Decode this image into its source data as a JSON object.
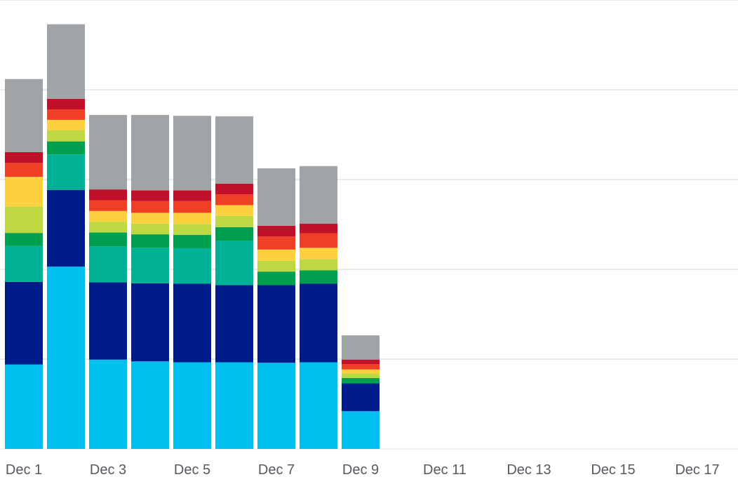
{
  "chart_data": {
    "type": "bar",
    "stacked": true,
    "title": "",
    "xlabel": "",
    "ylabel": "",
    "ylim": [
      0,
      100
    ],
    "grid": true,
    "legend": "none",
    "categories": [
      "Dec 1",
      "Dec 2",
      "Dec 3",
      "Dec 4",
      "Dec 5",
      "Dec 6",
      "Dec 7",
      "Dec 8",
      "Dec 9",
      "Dec 10",
      "Dec 11",
      "Dec 12",
      "Dec 13",
      "Dec 14",
      "Dec 15",
      "Dec 16",
      "Dec 17"
    ],
    "tick_labels": [
      "Dec 1",
      "Dec 3",
      "Dec 5",
      "Dec 7",
      "Dec 9",
      "Dec 11",
      "Dec 13",
      "Dec 15",
      "Dec 17"
    ],
    "series": [
      {
        "color": "#00bfee",
        "values": [
          18.8,
          40.6,
          19.9,
          19.5,
          19.3,
          19.3,
          19.2,
          19.3,
          8.4,
          0,
          0,
          0,
          0,
          0,
          0,
          0,
          0
        ]
      },
      {
        "color": "#001c8b",
        "values": [
          18.4,
          17.1,
          17.2,
          17.4,
          17.5,
          17.2,
          17.3,
          17.5,
          6.2,
          0,
          0,
          0,
          0,
          0,
          0,
          0,
          0
        ]
      },
      {
        "color": "#00b195",
        "values": [
          8.0,
          7.9,
          8.0,
          7.9,
          7.9,
          9.9,
          0.0,
          0.0,
          0.0,
          0,
          0,
          0,
          0,
          0,
          0,
          0,
          0
        ]
      },
      {
        "color": "#009e4f",
        "values": [
          2.9,
          2.9,
          3.1,
          3.0,
          3.0,
          3.0,
          3.0,
          3.0,
          1.2,
          0,
          0,
          0,
          0,
          0,
          0,
          0,
          0
        ]
      },
      {
        "color": "#bdd843",
        "values": [
          5.9,
          2.5,
          2.4,
          2.4,
          2.4,
          2.5,
          2.4,
          2.5,
          1.0,
          0,
          0,
          0,
          0,
          0,
          0,
          0,
          0
        ]
      },
      {
        "color": "#fdd13d",
        "values": [
          6.6,
          2.3,
          2.4,
          2.4,
          2.5,
          2.4,
          2.5,
          2.5,
          0.9,
          0,
          0,
          0,
          0,
          0,
          0,
          0,
          0
        ]
      },
      {
        "color": "#ef3f24",
        "values": [
          3.1,
          2.3,
          2.4,
          2.6,
          2.6,
          2.4,
          2.9,
          3.2,
          1.2,
          0,
          0,
          0,
          0,
          0,
          0,
          0,
          0
        ]
      },
      {
        "color": "#c1102a",
        "values": [
          2.4,
          2.4,
          2.4,
          2.4,
          2.4,
          2.4,
          2.4,
          2.2,
          1.0,
          0,
          0,
          0,
          0,
          0,
          0,
          0,
          0
        ]
      },
      {
        "color": "#a0a4a7",
        "values": [
          16.3,
          16.6,
          16.6,
          16.8,
          16.6,
          15.0,
          12.8,
          12.8,
          5.4,
          0,
          0,
          0,
          0,
          0,
          0,
          0,
          0
        ]
      }
    ]
  }
}
